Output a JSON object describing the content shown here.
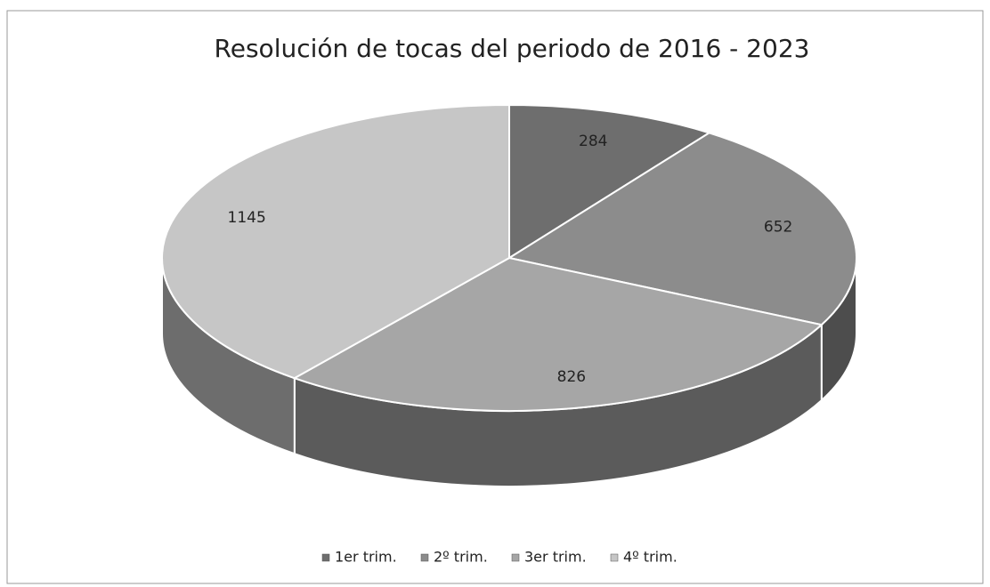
{
  "chart_data": {
    "type": "pie",
    "title": "Resolución de tocas del periodo de 2016 - 2023",
    "categories": [
      "1er trim.",
      "2º trim.",
      "3er trim.",
      "4º trim."
    ],
    "values": [
      284,
      652,
      826,
      1145
    ],
    "colors": [
      "#6e6e6e",
      "#8c8c8c",
      "#a6a6a6",
      "#c6c6c6"
    ],
    "legend": "bottom"
  }
}
